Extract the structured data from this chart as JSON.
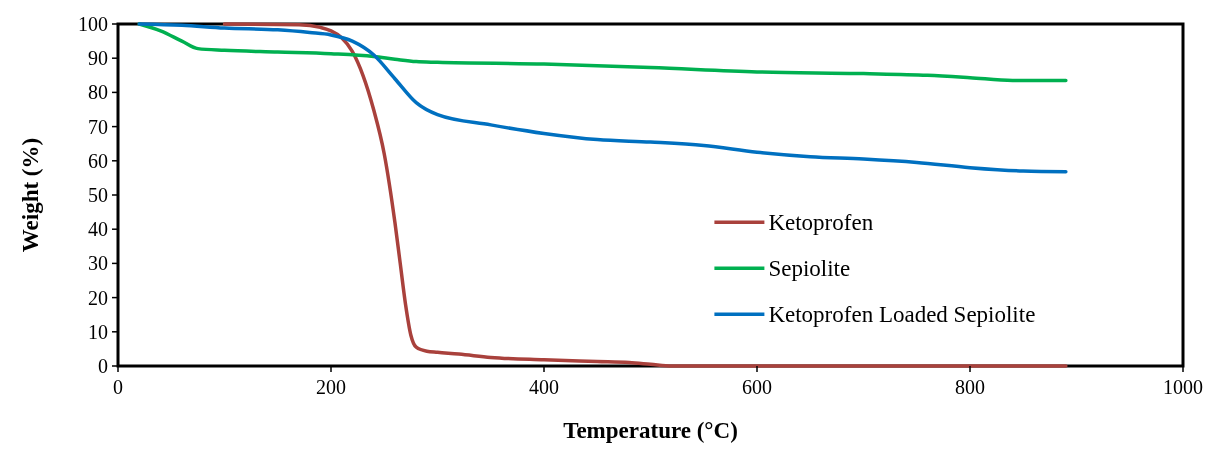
{
  "chart_data": {
    "type": "line",
    "xlabel": "Temperature (°C)",
    "ylabel": "Weight (%)",
    "xlim": [
      0,
      1000
    ],
    "xticks": [
      0,
      200,
      400,
      600,
      800,
      1000
    ],
    "ylim": [
      0,
      100
    ],
    "yticks": [
      0,
      10,
      20,
      30,
      40,
      50,
      60,
      70,
      80,
      90,
      100
    ],
    "grid": false,
    "legend": "right",
    "marker": "none",
    "line_style": "solid",
    "series": [
      {
        "name": "Ketoprofen",
        "color": "#a9413c",
        "x": [
          100,
          170,
          190,
          200,
          210,
          220,
          230,
          240,
          250,
          260,
          265,
          270,
          275,
          280,
          290,
          300,
          320,
          350,
          400,
          450,
          480,
          500,
          520,
          600,
          700,
          800,
          890
        ],
        "values": [
          100,
          99.8,
          99,
          98,
          96,
          92,
          85,
          75,
          62,
          42,
          30,
          18,
          9,
          5.5,
          4.3,
          4,
          3.5,
          2.5,
          1.8,
          1.3,
          1,
          0.5,
          0,
          0,
          0,
          0,
          0
        ]
      },
      {
        "name": "Sepiolite",
        "color": "#00b050",
        "x": [
          20,
          40,
          60,
          75,
          100,
          150,
          200,
          240,
          260,
          280,
          300,
          400,
          500,
          600,
          700,
          760,
          800,
          840,
          890
        ],
        "values": [
          100,
          98,
          95,
          92.8,
          92.3,
          91.8,
          91.3,
          90.5,
          89.7,
          89,
          88.8,
          88.3,
          87.3,
          86,
          85.5,
          85,
          84.3,
          83.5,
          83.5
        ]
      },
      {
        "name": "Ketoprofen Loaded Sepiolite",
        "color": "#0070c0",
        "x": [
          20,
          60,
          100,
          150,
          180,
          200,
          220,
          240,
          260,
          280,
          300,
          350,
          400,
          450,
          500,
          550,
          600,
          650,
          700,
          750,
          800,
          850,
          890
        ],
        "values": [
          100,
          99.6,
          98.8,
          98.3,
          97.5,
          96.8,
          95,
          91,
          84,
          77,
          73.5,
          70.5,
          68,
          66.2,
          65.5,
          64.5,
          62.5,
          61.2,
          60.5,
          59.5,
          58,
          57,
          56.8
        ]
      }
    ]
  }
}
